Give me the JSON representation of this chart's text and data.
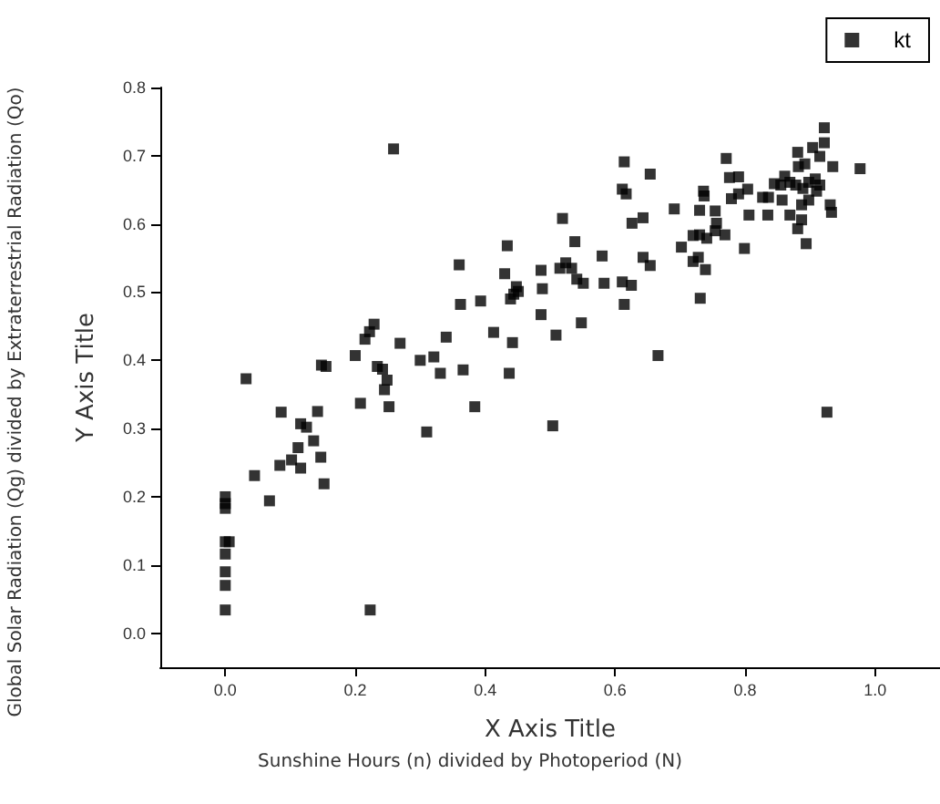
{
  "chart_data": {
    "type": "scatter",
    "xlabel": "X Axis Title",
    "ylabel": "Y Axis Title",
    "annotations": [
      "Global Solar Radiation (Qg) divided by Extraterrestrial Radiation (Qo)",
      "Sunshine Hours (n) divided by Photoperiod (N)"
    ],
    "xlim": [
      -0.1,
      1.1
    ],
    "ylim": [
      -0.05,
      0.8
    ],
    "xticks": [
      {
        "value": 0,
        "label": "0.0"
      },
      0.2,
      0.4,
      0.6,
      0.8,
      {
        "value": 1,
        "label": "1.0"
      }
    ],
    "yticks": [
      {
        "value": 0,
        "label": "0.0"
      },
      0.1,
      0.2,
      0.3,
      0.4,
      0.5,
      0.6,
      0.7,
      0.8
    ],
    "grid": false,
    "legend": "top right",
    "marker": "square",
    "series": [
      {
        "name": "kt",
        "color": "#000000",
        "x": [
          0.259,
          0.032,
          0,
          0,
          0,
          0,
          0.006,
          0,
          0,
          0,
          0,
          0.223,
          0.045,
          0.068,
          0.084,
          0.086,
          0.102,
          0.112,
          0.116,
          0.125,
          0.116,
          0.136,
          0.142,
          0.147,
          0.152,
          0.148,
          0.155,
          0.2,
          0.208,
          0.215,
          0.222,
          0.229,
          0.234,
          0.242,
          0.249,
          0.245,
          0.252,
          0.269,
          0.3,
          0.31,
          0.321,
          0.331,
          0.34,
          0.36,
          0.362,
          0.366,
          0.384,
          0.393,
          0.413,
          0.434,
          0.43,
          0.442,
          0.437,
          0.439,
          0.444,
          0.448,
          0.451,
          0.486,
          0.488,
          0.486,
          0.504,
          0.509,
          0.519,
          0.538,
          0.515,
          0.524,
          0.533,
          0.541,
          0.551,
          0.548,
          0.58,
          0.583,
          0.611,
          0.625,
          0.614,
          0.614,
          0.611,
          0.617,
          0.626,
          0.643,
          0.654,
          0.643,
          0.654,
          0.666,
          0.691,
          0.702,
          0.72,
          0.73,
          0.741,
          0.72,
          0.728,
          0.739,
          0.731,
          0.73,
          0.736,
          0.737,
          0.754,
          0.756,
          0.754,
          0.769,
          0.771,
          0.776,
          0.79,
          0.779,
          0.79,
          0.804,
          0.799,
          0.806,
          0.827,
          0.836,
          0.835,
          0.845,
          0.855,
          0.861,
          0.869,
          0.857,
          0.869,
          0.881,
          0.882,
          0.892,
          0.878,
          0.889,
          0.898,
          0.887,
          0.898,
          0.881,
          0.887,
          0.894,
          0.904,
          0.915,
          0.922,
          0.922,
          0.908,
          0.915,
          0.91,
          0.931,
          0.933,
          0.935,
          0.977,
          0.926
        ],
        "values": [
          0.71,
          0.373,
          0.2,
          0.19,
          0.183,
          0.134,
          0.134,
          0.116,
          0.09,
          0.07,
          0.034,
          0.034,
          0.231,
          0.194,
          0.246,
          0.324,
          0.254,
          0.272,
          0.307,
          0.302,
          0.242,
          0.282,
          0.325,
          0.258,
          0.219,
          0.393,
          0.391,
          0.407,
          0.337,
          0.431,
          0.442,
          0.453,
          0.391,
          0.387,
          0.371,
          0.357,
          0.332,
          0.425,
          0.4,
          0.295,
          0.405,
          0.381,
          0.434,
          0.54,
          0.482,
          0.386,
          0.332,
          0.487,
          0.441,
          0.568,
          0.527,
          0.426,
          0.381,
          0.49,
          0.497,
          0.508,
          0.501,
          0.532,
          0.505,
          0.467,
          0.304,
          0.437,
          0.608,
          0.574,
          0.535,
          0.543,
          0.535,
          0.519,
          0.513,
          0.455,
          0.553,
          0.513,
          0.515,
          0.51,
          0.482,
          0.691,
          0.651,
          0.644,
          0.601,
          0.609,
          0.673,
          0.551,
          0.539,
          0.407,
          0.622,
          0.566,
          0.583,
          0.584,
          0.579,
          0.545,
          0.551,
          0.533,
          0.491,
          0.62,
          0.648,
          0.641,
          0.619,
          0.601,
          0.59,
          0.584,
          0.696,
          0.668,
          0.669,
          0.637,
          0.644,
          0.651,
          0.564,
          0.613,
          0.639,
          0.639,
          0.613,
          0.659,
          0.657,
          0.67,
          0.661,
          0.635,
          0.613,
          0.705,
          0.684,
          0.688,
          0.657,
          0.652,
          0.661,
          0.628,
          0.635,
          0.593,
          0.606,
          0.571,
          0.712,
          0.699,
          0.741,
          0.719,
          0.666,
          0.657,
          0.648,
          0.628,
          0.617,
          0.684,
          0.681,
          0.324
        ]
      }
    ]
  }
}
